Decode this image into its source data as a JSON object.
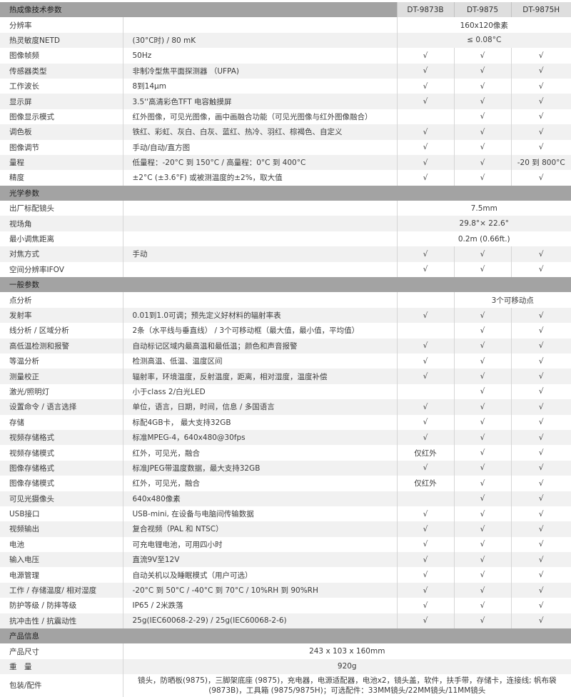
{
  "colors": {
    "section_header": "#a3a3a3",
    "model_header": "#dedede",
    "stripe": "#f1f1f1"
  },
  "header": {
    "title": "热成像技术参数",
    "models": [
      "DT-9873B",
      "DT-9875",
      "DT-9875H"
    ]
  },
  "sections": [
    {
      "title": "热成像技术参数",
      "is_header": true,
      "rows": [
        {
          "label": "分辨率",
          "desc": "",
          "cells": [
            {
              "text": "160x120像素",
              "span": 3
            }
          ]
        },
        {
          "label": "热灵敏度NETD",
          "desc": "(30°C时) / 80 mK",
          "cells": [
            {
              "text": "≤ 0.08°C",
              "span": 3
            }
          ]
        },
        {
          "label": "图像帧频",
          "desc": "50Hz",
          "cells": [
            {
              "text": "√"
            },
            {
              "text": "√"
            },
            {
              "text": "√"
            }
          ]
        },
        {
          "label": "传感器类型",
          "desc": "非制冷型焦平面探测器 （UFPA)",
          "cells": [
            {
              "text": "√"
            },
            {
              "text": "√"
            },
            {
              "text": "√"
            }
          ]
        },
        {
          "label": "工作波长",
          "desc": "8到14μm",
          "cells": [
            {
              "text": "√"
            },
            {
              "text": "√"
            },
            {
              "text": "√"
            }
          ]
        },
        {
          "label": "显示屏",
          "desc": "3.5''高清彩色TFT 电容触摸屏",
          "cells": [
            {
              "text": "√"
            },
            {
              "text": "√"
            },
            {
              "text": "√"
            }
          ]
        },
        {
          "label": "图像显示模式",
          "desc": "红外图像，可见光图像，画中画融合功能（可见光图像与红外图像融合）",
          "cells": [
            {
              "text": ""
            },
            {
              "text": "√"
            },
            {
              "text": "√"
            }
          ]
        },
        {
          "label": "调色板",
          "desc": "铁红、彩虹、灰白、白灰、蓝红、热冷、羽红、棕褐色、自定义",
          "cells": [
            {
              "text": "√"
            },
            {
              "text": "√"
            },
            {
              "text": "√"
            }
          ]
        },
        {
          "label": "图像调节",
          "desc": "手动/自动/直方图",
          "cells": [
            {
              "text": "√"
            },
            {
              "text": "√"
            },
            {
              "text": "√"
            }
          ]
        },
        {
          "label": "量程",
          "desc": "低量程：-20°C 到 150°C / 高量程：0°C 到 400°C",
          "cells": [
            {
              "text": "√"
            },
            {
              "text": "√"
            },
            {
              "text": "-20 到 800°C"
            }
          ]
        },
        {
          "label": "精度",
          "desc": "±2°C (±3.6°F) 或被测温度的±2%，取大值",
          "cells": [
            {
              "text": "√"
            },
            {
              "text": "√"
            },
            {
              "text": "√"
            }
          ]
        }
      ]
    },
    {
      "title": "光学参数",
      "rows": [
        {
          "label": "出厂标配镜头",
          "desc": "",
          "cells": [
            {
              "text": "7.5mm",
              "span": 3
            }
          ]
        },
        {
          "label": "视场角",
          "desc": "",
          "cells": [
            {
              "text": "29.8°× 22.6°",
              "span": 3
            }
          ]
        },
        {
          "label": "最小调焦距离",
          "desc": "",
          "cells": [
            {
              "text": "0.2m (0.66ft.)",
              "span": 3
            }
          ]
        },
        {
          "label": "对焦方式",
          "desc": "手动",
          "cells": [
            {
              "text": "√"
            },
            {
              "text": "√"
            },
            {
              "text": "√"
            }
          ]
        },
        {
          "label": "空间分辨率IFOV",
          "desc": "",
          "cells": [
            {
              "text": "√"
            },
            {
              "text": "√"
            },
            {
              "text": "√"
            }
          ]
        }
      ]
    },
    {
      "title": "一般参数",
      "rows": [
        {
          "label": "点分析",
          "desc": "",
          "cells": [
            {
              "text": ""
            },
            {
              "text": "3个可移动点",
              "span": 2
            }
          ]
        },
        {
          "label": "发射率",
          "desc": "0.01到1.0可调；预先定义好材料的辐射率表",
          "cells": [
            {
              "text": "√"
            },
            {
              "text": "√"
            },
            {
              "text": "√"
            }
          ]
        },
        {
          "label": "线分析 / 区域分析",
          "desc": "2条（水平线与垂直线） / 3个可移动框（最大值，最小值，平均值）",
          "cells": [
            {
              "text": ""
            },
            {
              "text": "√"
            },
            {
              "text": "√"
            }
          ]
        },
        {
          "label": "高低温检测和报警",
          "desc": "自动标记区域内最高温和最低温；颜色和声音报警",
          "cells": [
            {
              "text": "√"
            },
            {
              "text": "√"
            },
            {
              "text": "√"
            }
          ]
        },
        {
          "label": "等温分析",
          "desc": "检测高温、低温、温度区间",
          "cells": [
            {
              "text": "√"
            },
            {
              "text": "√"
            },
            {
              "text": "√"
            }
          ]
        },
        {
          "label": "测量校正",
          "desc": "辐射率，环境温度，反射温度，距离，相对湿度，温度补偿",
          "cells": [
            {
              "text": "√"
            },
            {
              "text": "√"
            },
            {
              "text": "√"
            }
          ]
        },
        {
          "label": "激光/照明灯",
          "desc": "小于class 2/白光LED",
          "cells": [
            {
              "text": ""
            },
            {
              "text": "√"
            },
            {
              "text": "√"
            }
          ]
        },
        {
          "label": "设置命令 / 语言选择",
          "desc": "单位，语言，日期，时间，信息 / 多国语言",
          "cells": [
            {
              "text": "√"
            },
            {
              "text": "√"
            },
            {
              "text": "√"
            }
          ]
        },
        {
          "label": "存储",
          "desc": "标配4GB卡， 最大支持32GB",
          "cells": [
            {
              "text": "√"
            },
            {
              "text": "√"
            },
            {
              "text": "√"
            }
          ]
        },
        {
          "label": "视频存储格式",
          "desc": "标准MPEG-4，640x480@30fps",
          "cells": [
            {
              "text": "√"
            },
            {
              "text": "√"
            },
            {
              "text": "√"
            }
          ]
        },
        {
          "label": "视频存储模式",
          "desc": "红外，可见光，融合",
          "cells": [
            {
              "text": "仅红外"
            },
            {
              "text": "√"
            },
            {
              "text": "√"
            }
          ]
        },
        {
          "label": "图像存储格式",
          "desc": "标准JPEG带温度数据，最大支持32GB",
          "cells": [
            {
              "text": "√"
            },
            {
              "text": "√"
            },
            {
              "text": "√"
            }
          ]
        },
        {
          "label": "图像存储模式",
          "desc": "红外，可见光，融合",
          "cells": [
            {
              "text": "仅红外"
            },
            {
              "text": "√"
            },
            {
              "text": "√"
            }
          ]
        },
        {
          "label": "可见光摄像头",
          "desc": "640x480像素",
          "cells": [
            {
              "text": ""
            },
            {
              "text": "√"
            },
            {
              "text": "√"
            }
          ]
        },
        {
          "label": "USB接口",
          "desc": "USB-mini, 在设备与电脑间传输数据",
          "cells": [
            {
              "text": "√"
            },
            {
              "text": "√"
            },
            {
              "text": "√"
            }
          ]
        },
        {
          "label": "视频输出",
          "desc": "复合视频（PAL 和 NTSC）",
          "cells": [
            {
              "text": "√"
            },
            {
              "text": "√"
            },
            {
              "text": "√"
            }
          ]
        },
        {
          "label": "电池",
          "desc": "可充电锂电池，可用四小时",
          "cells": [
            {
              "text": "√"
            },
            {
              "text": "√"
            },
            {
              "text": "√"
            }
          ]
        },
        {
          "label": "输入电压",
          "desc": "直流9V至12V",
          "cells": [
            {
              "text": "√"
            },
            {
              "text": "√"
            },
            {
              "text": "√"
            }
          ]
        },
        {
          "label": "电源管理",
          "desc": "自动关机以及睡眠模式（用户可选）",
          "cells": [
            {
              "text": "√"
            },
            {
              "text": "√"
            },
            {
              "text": "√"
            }
          ]
        },
        {
          "label": "工作 / 存储温度/ 相对湿度",
          "desc": "-20°C 到 50°C / -40°C 到 70°C / 10%RH 到 90%RH",
          "cells": [
            {
              "text": "√"
            },
            {
              "text": "√"
            },
            {
              "text": "√"
            }
          ]
        },
        {
          "label": "防护等级 / 防摔等级",
          "desc": "IP65 / 2米跌落",
          "cells": [
            {
              "text": "√"
            },
            {
              "text": "√"
            },
            {
              "text": "√"
            }
          ]
        },
        {
          "label": "抗冲击性 / 抗震动性",
          "desc": "25g(IEC60068-2-29) / 25g(IEC60068-2-6)",
          "cells": [
            {
              "text": "√"
            },
            {
              "text": "√"
            },
            {
              "text": "√"
            }
          ]
        }
      ]
    },
    {
      "title": "产品信息",
      "rows": [
        {
          "label": "产品尺寸",
          "full": "243 x 103 x 160mm"
        },
        {
          "label": "重　量",
          "full": "920g"
        },
        {
          "label": "包装/配件",
          "full": "镜头，防晒板(9875)，三脚架底座 (9875)，充电器，电源适配器，电池x2，镜头盖，软件，扶手带，存储卡，连接线; 帆布袋(9873B)，工具箱 (9875/9875H)；可选配件：33MM镜头/22MM镜头/11MM镜头",
          "tall": true
        }
      ]
    }
  ]
}
